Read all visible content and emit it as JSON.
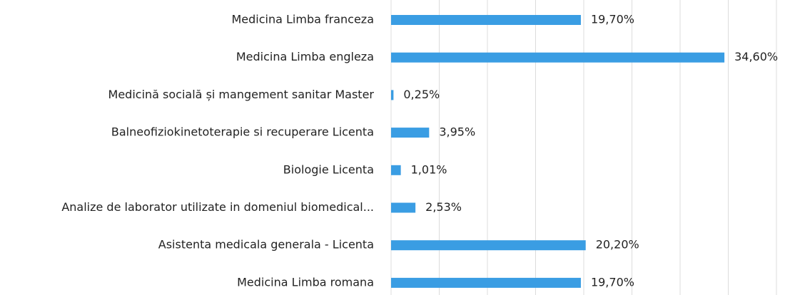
{
  "chart_data": {
    "type": "bar",
    "orientation": "horizontal",
    "categories": [
      "Medicina Limba franceza",
      "Medicina Limba engleza",
      "Medicină socială și mangement sanitar Master",
      "Balneofiziokinetoterapie si recuperare Licenta",
      "Biologie Licenta",
      "Analize de laborator utilizate in domeniul biomedical...",
      "Asistenta medicala generala - Licenta",
      "Medicina Limba romana"
    ],
    "values": [
      19.7,
      34.6,
      0.25,
      3.95,
      1.01,
      2.53,
      20.2,
      19.7
    ],
    "value_labels": [
      "19,70%",
      "34,60%",
      "0,25%",
      "3,95%",
      "1,01%",
      "2,53%",
      "20,20%",
      "19,70%"
    ],
    "color": "#3a9de3",
    "xlim": [
      0,
      40
    ],
    "xticks": [
      0,
      5,
      10,
      15,
      20,
      25,
      30,
      35,
      40
    ],
    "grid": true
  }
}
